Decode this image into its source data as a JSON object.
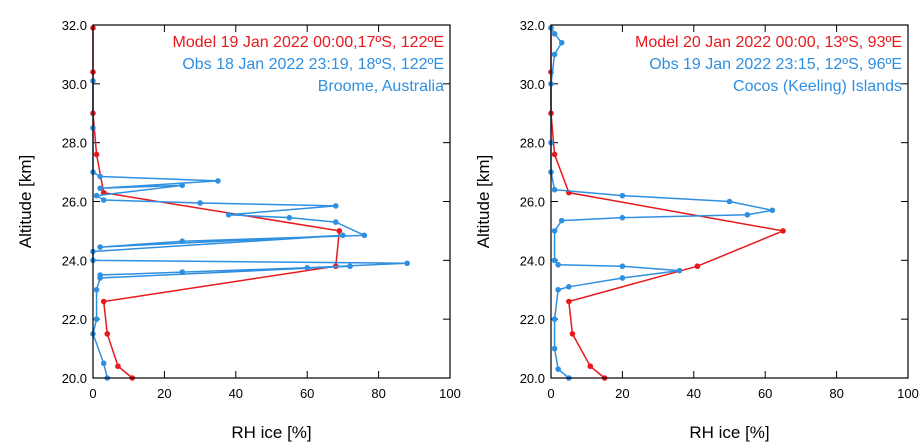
{
  "chart_data": [
    {
      "type": "line",
      "xlabel": "RH ice [%]",
      "ylabel": "Altitude [km]",
      "annotation": "Broome, Australia",
      "xlim": [
        0,
        100
      ],
      "xticks": [
        0,
        20,
        40,
        60,
        80,
        100
      ],
      "ylim": [
        20,
        32
      ],
      "yticks": [
        {
          "value": 20,
          "label": "20.0"
        },
        {
          "value": 22,
          "label": "22.0"
        },
        {
          "value": 24,
          "label": "24.0"
        },
        {
          "value": 26,
          "label": "26.0"
        },
        {
          "value": 28,
          "label": "28.0"
        },
        {
          "value": 30,
          "label": "30.0"
        },
        {
          "value": 32,
          "label": "32.0"
        }
      ],
      "series": [
        {
          "name": "Model 19 Jan 2022 00:00,17ºS, 122ºE",
          "color": "#e8191c",
          "x": [
            0,
            0,
            0,
            1,
            3,
            69,
            68,
            3,
            4,
            7,
            11
          ],
          "values": [
            31.9,
            30.4,
            29.0,
            27.6,
            26.3,
            25.0,
            23.8,
            22.6,
            21.5,
            20.4,
            20.0
          ]
        },
        {
          "name": "Obs 18 Jan 2022 23:19, 18ºS, 122ºE",
          "color": "#2f8fe0",
          "x": [
            0,
            0,
            0,
            2,
            35,
            2,
            25,
            1,
            3,
            30,
            68,
            38,
            55,
            68,
            76,
            25,
            2,
            70,
            0,
            0,
            88,
            60,
            2,
            25,
            72,
            2,
            1,
            1,
            0,
            3,
            4
          ],
          "values": [
            30.1,
            28.5,
            27.0,
            26.85,
            26.7,
            26.45,
            26.55,
            26.2,
            26.05,
            25.95,
            25.85,
            25.55,
            25.45,
            25.3,
            24.85,
            24.65,
            24.45,
            24.85,
            24.3,
            24.0,
            23.9,
            23.75,
            23.5,
            23.6,
            23.8,
            23.4,
            23.0,
            22.0,
            21.5,
            20.5,
            20.0
          ]
        }
      ]
    },
    {
      "type": "line",
      "xlabel": "RH ice [%]",
      "ylabel": "Altitude [km]",
      "annotation": "Cocos (Keeling) Islands",
      "xlim": [
        0,
        100
      ],
      "xticks": [
        0,
        20,
        40,
        60,
        80,
        100
      ],
      "ylim": [
        20,
        32
      ],
      "yticks": [
        {
          "value": 20,
          "label": "20.0"
        },
        {
          "value": 22,
          "label": "22.0"
        },
        {
          "value": 24,
          "label": "24.0"
        },
        {
          "value": 26,
          "label": "26.0"
        },
        {
          "value": 28,
          "label": "28.0"
        },
        {
          "value": 30,
          "label": "30.0"
        },
        {
          "value": 32,
          "label": "32.0"
        }
      ],
      "series": [
        {
          "name": "Model 20 Jan 2022 00:00, 13ºS, 93ºE",
          "color": "#e8191c",
          "x": [
            0,
            0,
            0,
            1,
            5,
            65,
            41,
            5,
            6,
            11,
            15
          ],
          "values": [
            31.9,
            30.4,
            29.0,
            27.6,
            26.3,
            25.0,
            23.8,
            22.6,
            21.5,
            20.4,
            20.0
          ]
        },
        {
          "name": "Obs 19 Jan 2022 23:15, 12ºS, 96ºE",
          "color": "#2f8fe0",
          "x": [
            0,
            1,
            3,
            1,
            0,
            0,
            0,
            1,
            20,
            50,
            62,
            55,
            20,
            3,
            1,
            1,
            2,
            20,
            36,
            20,
            5,
            2,
            1,
            1,
            2,
            5
          ],
          "values": [
            31.9,
            31.7,
            31.4,
            31.0,
            30.0,
            28.0,
            27.0,
            26.4,
            26.2,
            26.0,
            25.7,
            25.55,
            25.45,
            25.35,
            25.0,
            24.0,
            23.85,
            23.8,
            23.65,
            23.4,
            23.1,
            23.0,
            22.0,
            21.0,
            20.3,
            20.0
          ]
        }
      ]
    }
  ]
}
